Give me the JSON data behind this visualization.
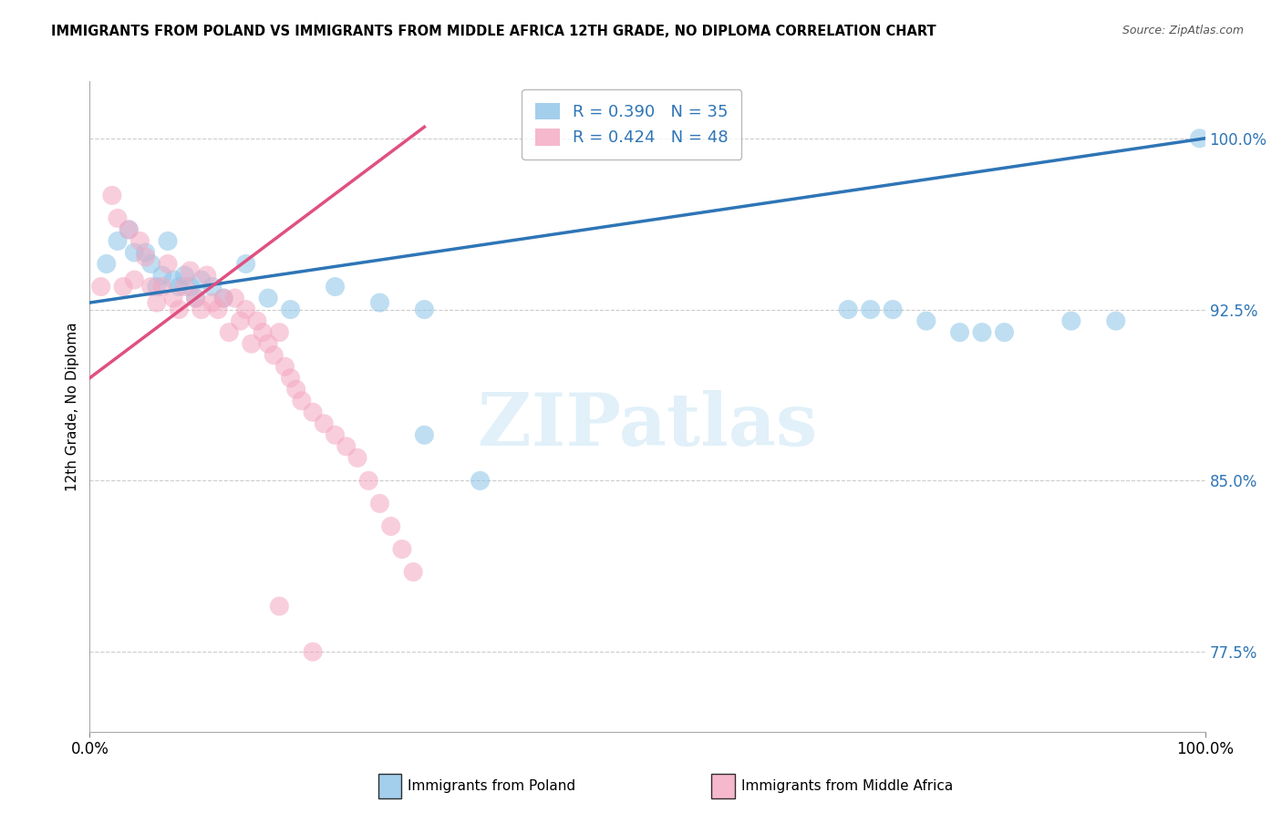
{
  "title": "IMMIGRANTS FROM POLAND VS IMMIGRANTS FROM MIDDLE AFRICA 12TH GRADE, NO DIPLOMA CORRELATION CHART",
  "source": "Source: ZipAtlas.com",
  "ylabel": "12th Grade, No Diploma",
  "poland_R": 0.39,
  "poland_N": 35,
  "midafrica_R": 0.424,
  "midafrica_N": 48,
  "blue_dot_color": "#8CC4E8",
  "pink_dot_color": "#F4A7C0",
  "blue_line_color": "#2E75B6",
  "pink_line_color": "#E05080",
  "legend_label_poland": "Immigrants from Poland",
  "legend_label_midafrica": "Immigrants from Middle Africa",
  "watermark_text": "ZIPatlas",
  "background_color": "#FFFFFF",
  "grid_color": "#CCCCCC",
  "y_ticks": [
    77.5,
    85.0,
    92.5,
    100.0
  ],
  "y_tick_labels": [
    "77.5%",
    "85.0%",
    "92.5%",
    "100.0%"
  ],
  "xlim": [
    0.0,
    100.0
  ],
  "ylim": [
    74.0,
    102.5
  ],
  "poland_x": [
    1.5,
    2.5,
    3.5,
    4.0,
    5.0,
    5.5,
    6.0,
    6.5,
    7.0,
    7.5,
    8.0,
    8.5,
    9.0,
    9.5,
    10.0,
    11.0,
    12.0,
    14.0,
    16.0,
    18.0,
    22.0,
    26.0,
    30.0,
    30.0,
    35.0,
    68.0,
    70.0,
    72.0,
    75.0,
    78.0,
    80.0,
    82.0,
    88.0,
    92.0,
    99.5
  ],
  "poland_y": [
    94.5,
    95.5,
    96.0,
    95.0,
    95.0,
    94.5,
    93.5,
    94.0,
    95.5,
    93.8,
    93.5,
    94.0,
    93.5,
    93.0,
    93.8,
    93.5,
    93.0,
    94.5,
    93.0,
    92.5,
    93.5,
    92.8,
    87.0,
    92.5,
    85.0,
    92.5,
    92.5,
    92.5,
    92.0,
    91.5,
    91.5,
    91.5,
    92.0,
    92.0,
    100.0
  ],
  "midafrica_x": [
    1.0,
    2.0,
    2.5,
    3.0,
    3.5,
    4.0,
    4.5,
    5.0,
    5.5,
    6.0,
    6.5,
    7.0,
    7.5,
    8.0,
    8.5,
    9.0,
    9.5,
    10.0,
    10.5,
    11.0,
    11.5,
    12.0,
    12.5,
    13.0,
    13.5,
    14.0,
    14.5,
    15.0,
    15.5,
    16.0,
    16.5,
    17.0,
    17.5,
    18.0,
    18.5,
    19.0,
    20.0,
    21.0,
    22.0,
    23.0,
    24.0,
    25.0,
    26.0,
    27.0,
    28.0,
    29.0,
    17.0,
    20.0
  ],
  "midafrica_y": [
    93.5,
    97.5,
    96.5,
    93.5,
    96.0,
    93.8,
    95.5,
    94.8,
    93.5,
    92.8,
    93.5,
    94.5,
    93.0,
    92.5,
    93.5,
    94.2,
    93.0,
    92.5,
    94.0,
    92.8,
    92.5,
    93.0,
    91.5,
    93.0,
    92.0,
    92.5,
    91.0,
    92.0,
    91.5,
    91.0,
    90.5,
    91.5,
    90.0,
    89.5,
    89.0,
    88.5,
    88.0,
    87.5,
    87.0,
    86.5,
    86.0,
    85.0,
    84.0,
    83.0,
    82.0,
    81.0,
    79.5,
    77.5
  ],
  "blue_trend_x": [
    0,
    100
  ],
  "blue_trend_y": [
    92.8,
    100.0
  ],
  "pink_trend_x": [
    0,
    30
  ],
  "pink_trend_y": [
    89.5,
    100.5
  ]
}
